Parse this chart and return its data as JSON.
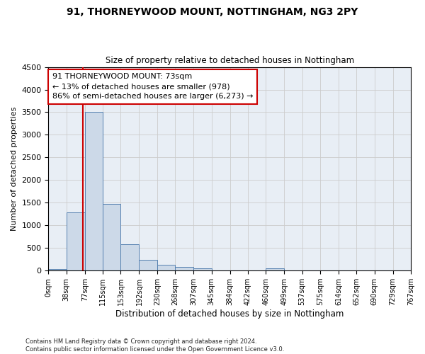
{
  "title": "91, THORNEYWOOD MOUNT, NOTTINGHAM, NG3 2PY",
  "subtitle": "Size of property relative to detached houses in Nottingham",
  "xlabel": "Distribution of detached houses by size in Nottingham",
  "ylabel": "Number of detached properties",
  "property_size": 73,
  "property_label": "91 THORNEYWOOD MOUNT: 73sqm",
  "pct_smaller": 13,
  "count_smaller": 978,
  "pct_larger_semi": 86,
  "count_larger_semi": "6,273",
  "bin_edges": [
    0,
    38,
    77,
    115,
    153,
    192,
    230,
    268,
    307,
    345,
    384,
    422,
    460,
    499,
    537,
    575,
    614,
    652,
    690,
    729,
    767
  ],
  "bar_values": [
    30,
    1280,
    3500,
    1480,
    580,
    240,
    130,
    75,
    50,
    0,
    0,
    0,
    50,
    0,
    0,
    0,
    0,
    0,
    0,
    0
  ],
  "bar_color": "#ccd9e8",
  "bar_edge_color": "#5580b0",
  "grid_color": "#cccccc",
  "vline_color": "#cc0000",
  "annotation_box_edge_color": "#cc0000",
  "bg_axes": "#e8eef5",
  "bg_fig": "#ffffff",
  "ylim": [
    0,
    4500
  ],
  "yticks": [
    0,
    500,
    1000,
    1500,
    2000,
    2500,
    3000,
    3500,
    4000,
    4500
  ],
  "footer_line1": "Contains HM Land Registry data © Crown copyright and database right 2024.",
  "footer_line2": "Contains public sector information licensed under the Open Government Licence v3.0."
}
